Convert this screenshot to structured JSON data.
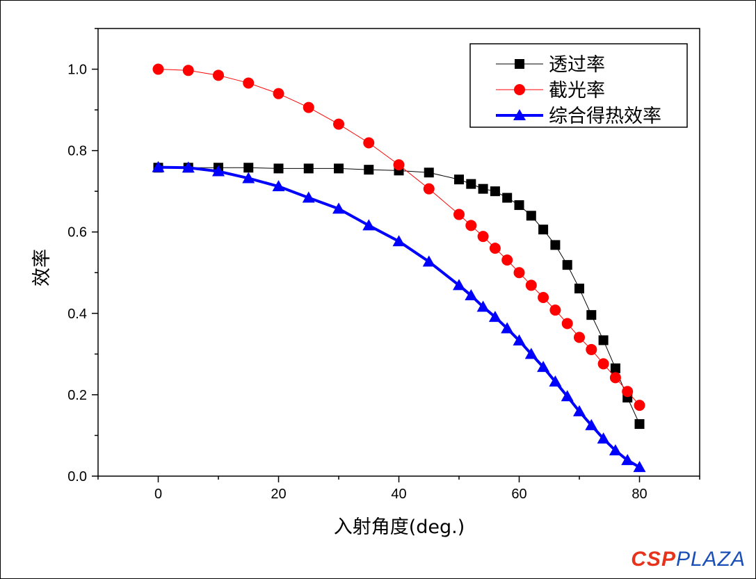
{
  "chart_data": {
    "type": "line",
    "title": "",
    "xlabel": "入射角度(deg.)",
    "ylabel": "效率",
    "xlim": [
      -10,
      90
    ],
    "ylim": [
      0,
      1.1
    ],
    "xticks": [
      0,
      20,
      40,
      60,
      80
    ],
    "yticks": [
      0.0,
      0.2,
      0.4,
      0.6,
      0.8,
      1.0
    ],
    "ytick_labels": [
      "0.0",
      "0.2",
      "0.4",
      "0.6",
      "0.8",
      "1.0"
    ],
    "grid": false,
    "legend_position": "top-right",
    "x": [
      0,
      5,
      10,
      15,
      20,
      25,
      30,
      35,
      40,
      45,
      50,
      52,
      54,
      56,
      58,
      60,
      62,
      64,
      66,
      68,
      70,
      72,
      74,
      76,
      78,
      80
    ],
    "series": [
      {
        "name": "透过率",
        "color": "#000000",
        "marker": "square",
        "line_width": 1,
        "values": [
          0.758,
          0.758,
          0.758,
          0.758,
          0.756,
          0.756,
          0.756,
          0.753,
          0.751,
          0.746,
          0.729,
          0.718,
          0.706,
          0.7,
          0.684,
          0.666,
          0.64,
          0.606,
          0.568,
          0.519,
          0.461,
          0.396,
          0.334,
          0.265,
          0.193,
          0.128
        ]
      },
      {
        "name": "截光率",
        "color": "#ff0000",
        "marker": "circle",
        "line_width": 1,
        "values": [
          1.0,
          0.997,
          0.985,
          0.966,
          0.94,
          0.906,
          0.865,
          0.819,
          0.765,
          0.706,
          0.643,
          0.616,
          0.589,
          0.56,
          0.531,
          0.5,
          0.469,
          0.439,
          0.408,
          0.375,
          0.341,
          0.311,
          0.276,
          0.242,
          0.208,
          0.174
        ]
      },
      {
        "name": "综合得热效率",
        "color": "#0000ff",
        "marker": "triangle",
        "line_width": 4,
        "values": [
          0.759,
          0.758,
          0.749,
          0.732,
          0.712,
          0.684,
          0.657,
          0.616,
          0.577,
          0.527,
          0.469,
          0.444,
          0.416,
          0.391,
          0.363,
          0.333,
          0.3,
          0.268,
          0.232,
          0.196,
          0.159,
          0.125,
          0.092,
          0.063,
          0.039,
          0.022
        ]
      }
    ]
  },
  "watermark": {
    "part1": "CSP",
    "part2": "PLAZA"
  }
}
